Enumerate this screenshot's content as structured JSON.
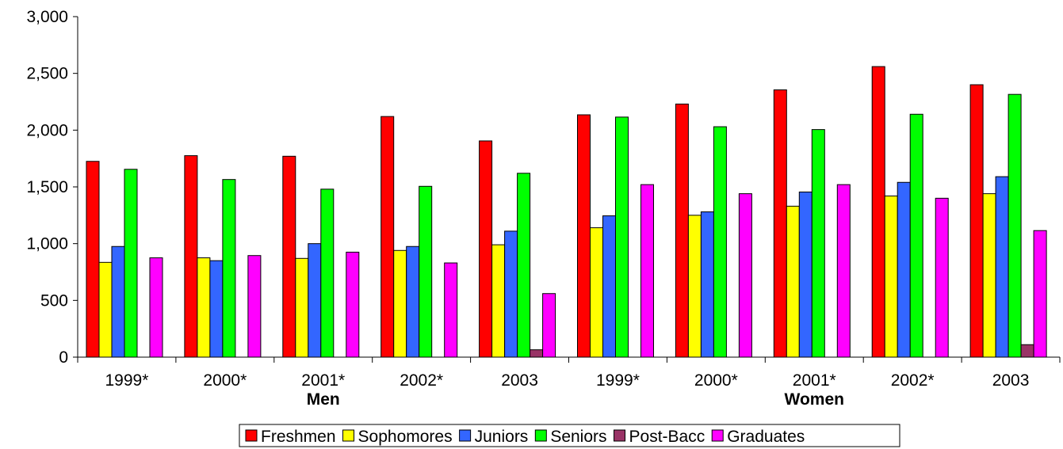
{
  "chart_data": {
    "type": "bar",
    "title": "",
    "xlabel": "",
    "ylabel": "",
    "ylim": [
      0,
      3000
    ],
    "yticks": [
      0,
      500,
      1000,
      1500,
      2000,
      2500,
      3000
    ],
    "ytick_labels": [
      "0",
      "500",
      "1,000",
      "1,500",
      "2,000",
      "2,500",
      "3,000"
    ],
    "grid": false,
    "legend_position": "bottom",
    "categories": [
      "1999*",
      "2000*",
      "2001*",
      "2002*",
      "2003",
      "1999*",
      "2000*",
      "2001*",
      "2002*",
      "2003"
    ],
    "groups": [
      {
        "label": "Men",
        "categories": [
          0,
          1,
          2,
          3,
          4
        ]
      },
      {
        "label": "Women",
        "categories": [
          5,
          6,
          7,
          8,
          9
        ]
      }
    ],
    "series": [
      {
        "name": "Freshmen",
        "color": "#ff0000",
        "values": [
          1725,
          1775,
          1770,
          2120,
          1905,
          2135,
          2230,
          2355,
          2560,
          2400
        ]
      },
      {
        "name": "Sophomores",
        "color": "#ffff00",
        "values": [
          835,
          875,
          870,
          940,
          990,
          1140,
          1250,
          1330,
          1420,
          1440
        ]
      },
      {
        "name": "Juniors",
        "color": "#3366ff",
        "values": [
          975,
          850,
          1000,
          975,
          1110,
          1245,
          1280,
          1455,
          1540,
          1590
        ]
      },
      {
        "name": "Seniors",
        "color": "#00ff00",
        "values": [
          1655,
          1565,
          1480,
          1505,
          1620,
          2115,
          2030,
          2005,
          2140,
          2315
        ]
      },
      {
        "name": "Post-Bacc",
        "color": "#993366",
        "values": [
          0,
          0,
          0,
          0,
          65,
          0,
          0,
          0,
          0,
          110
        ]
      },
      {
        "name": "Graduates",
        "color": "#ff00ff",
        "values": [
          875,
          895,
          925,
          830,
          560,
          1520,
          1440,
          1520,
          1400,
          1115
        ]
      }
    ]
  }
}
